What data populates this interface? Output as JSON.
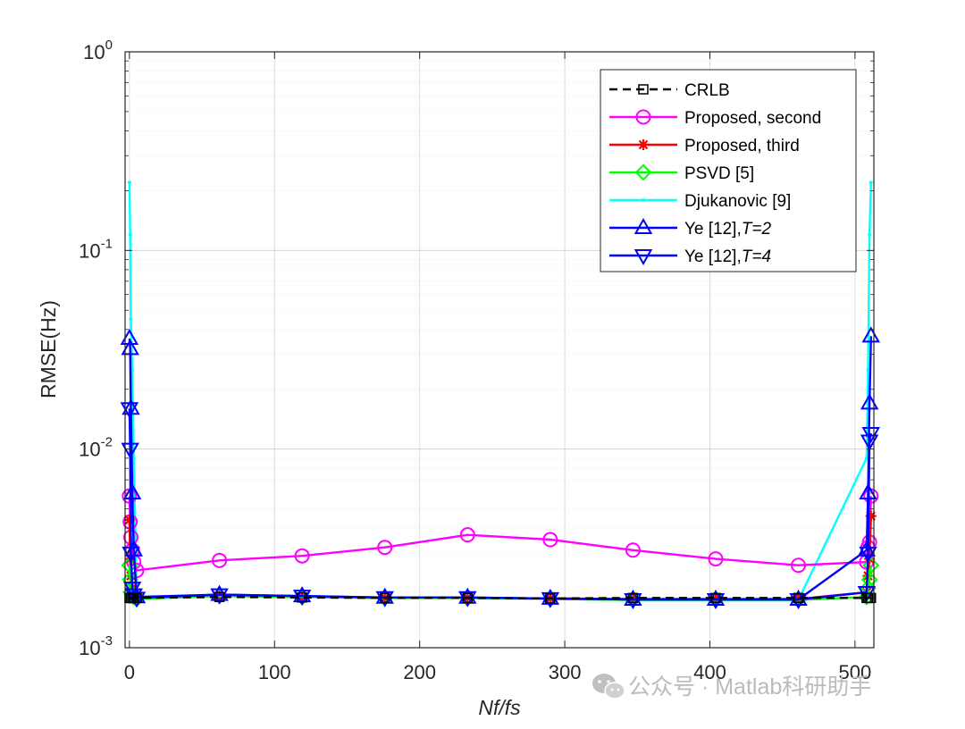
{
  "chart_data": {
    "type": "line",
    "xlabel": "Nf/fs",
    "ylabel": "RMSE(Hz)",
    "xlim": [
      -3,
      513
    ],
    "ylim": [
      0.001,
      1
    ],
    "yscale": "log",
    "grid": true,
    "minor_grid": true,
    "legend_position": "top-right",
    "x_ticks": [
      "0",
      "100",
      "200",
      "300",
      "400",
      "500"
    ],
    "y_ticks": [
      {
        "base": "10",
        "exp": "0"
      },
      {
        "base": "10",
        "exp": "-1"
      },
      {
        "base": "10",
        "exp": "-2"
      },
      {
        "base": "10",
        "exp": "-3"
      }
    ],
    "series": [
      {
        "name": "CRLB",
        "color": "#000000",
        "dashed": true,
        "marker": "square",
        "x": [
          0,
          0.5,
          1,
          2,
          3,
          5,
          62,
          119,
          176,
          233,
          290,
          347,
          404,
          461,
          508,
          509,
          510,
          511
        ],
        "y": [
          0.00178,
          0.00178,
          0.00178,
          0.00178,
          0.00178,
          0.00178,
          0.0018,
          0.00179,
          0.00178,
          0.00178,
          0.00177,
          0.00178,
          0.00178,
          0.00178,
          0.00178,
          0.00178,
          0.00178,
          0.00178
        ]
      },
      {
        "name": "Proposed, second",
        "color": "#ff00ff",
        "marker": "circle",
        "x": [
          0,
          0.5,
          1,
          2,
          3,
          5,
          62,
          119,
          176,
          233,
          290,
          347,
          404,
          461,
          508,
          509,
          510,
          511
        ],
        "y": [
          0.0058,
          0.0043,
          0.0036,
          0.0031,
          0.0027,
          0.00245,
          0.00275,
          0.0029,
          0.0032,
          0.0037,
          0.0035,
          0.0031,
          0.0028,
          0.0026,
          0.0027,
          0.0032,
          0.0034,
          0.0058
        ]
      },
      {
        "name": "Proposed, third",
        "color": "#ff0000",
        "marker": "star",
        "x": [
          0,
          0.5,
          1,
          2,
          3,
          5,
          62,
          119,
          176,
          233,
          290,
          347,
          404,
          461,
          508,
          509,
          510,
          511
        ],
        "y": [
          0.0044,
          0.0028,
          0.0023,
          0.002,
          0.0019,
          0.00178,
          0.00182,
          0.0018,
          0.00178,
          0.00178,
          0.00177,
          0.00176,
          0.00176,
          0.00176,
          0.0019,
          0.0023,
          0.0028,
          0.0046
        ]
      },
      {
        "name": "PSVD [5]",
        "color": "#00ff00",
        "marker": "diamond",
        "x": [
          0,
          0.5,
          1,
          2,
          3,
          5,
          62,
          119,
          176,
          233,
          290,
          347,
          404,
          461,
          508,
          509,
          510,
          511
        ],
        "y": [
          0.0026,
          0.0022,
          0.0019,
          0.00185,
          0.0018,
          0.00176,
          0.00182,
          0.0018,
          0.00178,
          0.00178,
          0.00176,
          0.00174,
          0.00174,
          0.00174,
          0.0018,
          0.002,
          0.0022,
          0.0026
        ]
      },
      {
        "name": "Djukanovic [9]",
        "color": "#00ffff",
        "marker": "point",
        "x": [
          0,
          0.5,
          1,
          2,
          3,
          5,
          62,
          119,
          176,
          233,
          290,
          347,
          404,
          461,
          508,
          509,
          510,
          511
        ],
        "y": [
          0.22,
          0.12,
          0.045,
          0.025,
          0.009,
          0.0018,
          0.00183,
          0.0018,
          0.00178,
          0.00178,
          0.00176,
          0.00174,
          0.00174,
          0.00174,
          0.009,
          0.025,
          0.12,
          0.22
        ]
      },
      {
        "name": "Ye [12],",
        "name_suffix": "T=2",
        "color": "#0000ff",
        "marker": "triangle-up",
        "x": [
          0,
          0.5,
          1,
          2,
          3,
          5,
          62,
          119,
          176,
          233,
          290,
          347,
          404,
          461,
          508,
          509,
          510,
          511
        ],
        "y": [
          0.036,
          0.032,
          0.016,
          0.006,
          0.0031,
          0.0018,
          0.00185,
          0.00182,
          0.00179,
          0.00179,
          0.00177,
          0.00175,
          0.00175,
          0.00175,
          0.0031,
          0.006,
          0.017,
          0.037
        ]
      },
      {
        "name": "Ye [12],",
        "name_suffix": "T=4",
        "color": "#0000ff",
        "marker": "triangle-down",
        "x": [
          0,
          0.5,
          1,
          2,
          3,
          5,
          62,
          119,
          176,
          233,
          290,
          347,
          404,
          461,
          508,
          509,
          510,
          511
        ],
        "y": [
          0.016,
          0.01,
          0.003,
          0.002,
          0.00185,
          0.00178,
          0.00185,
          0.00182,
          0.00179,
          0.00179,
          0.00177,
          0.00175,
          0.00175,
          0.00175,
          0.0019,
          0.003,
          0.011,
          0.012
        ]
      }
    ]
  },
  "watermark": {
    "text": "公众号 · Matlab科研助手",
    "icon": "wechat-icon"
  }
}
